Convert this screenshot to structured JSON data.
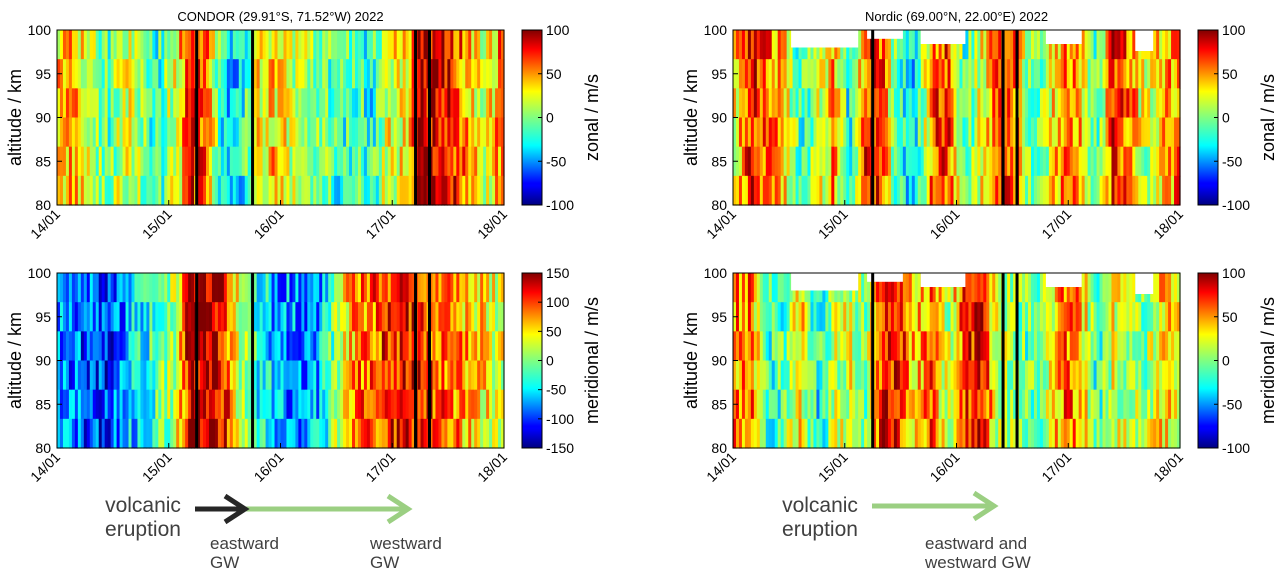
{
  "chart_data": [
    {
      "type": "heatmap",
      "title": "CONDOR  (29.91°S, 71.52°W)  2022",
      "ylabel": "altitude / km",
      "colorbar_label": "zonal / m/s",
      "x_ticks": [
        "14/01",
        "15/01",
        "16/01",
        "17/01",
        "18/01"
      ],
      "y_ticks": [
        80,
        85,
        90,
        95,
        100
      ],
      "ylim": [
        80,
        100
      ],
      "clim": [
        -100,
        100
      ],
      "colorbar_ticks": [
        100,
        50,
        0,
        -50,
        -100
      ],
      "colormap": "jet",
      "event_lines": [
        "15/01 06:00",
        "15/01 18:00",
        "17/01 05:00",
        "17/01 08:00"
      ]
    },
    {
      "type": "heatmap",
      "title": "Nordic  (69.00°N, 22.00°E)  2022",
      "ylabel": "altitude / km",
      "colorbar_label": "zonal / m/s",
      "x_ticks": [
        "14/01",
        "15/01",
        "16/01",
        "17/01",
        "18/01"
      ],
      "y_ticks": [
        80,
        85,
        90,
        95,
        100
      ],
      "ylim": [
        80,
        100
      ],
      "clim": [
        -100,
        100
      ],
      "colorbar_ticks": [
        100,
        50,
        0,
        -50,
        -100
      ],
      "colormap": "jet",
      "event_lines": [
        "15/01 06:00",
        "16/01 10:00",
        "16/01 13:00"
      ]
    },
    {
      "type": "heatmap",
      "title": "",
      "ylabel": "altitude / km",
      "colorbar_label": "meridional / m/s",
      "x_ticks": [
        "14/01",
        "15/01",
        "16/01",
        "17/01",
        "18/01"
      ],
      "y_ticks": [
        80,
        85,
        90,
        95,
        100
      ],
      "ylim": [
        80,
        100
      ],
      "clim": [
        -150,
        150
      ],
      "colorbar_ticks": [
        150,
        100,
        50,
        0,
        -50,
        -100,
        -150
      ],
      "colormap": "jet",
      "event_lines": [
        "15/01 06:00",
        "15/01 18:00",
        "17/01 05:00",
        "17/01 08:00"
      ]
    },
    {
      "type": "heatmap",
      "title": "",
      "ylabel": "altitude / km",
      "colorbar_label": "meridional / m/s",
      "x_ticks": [
        "14/01",
        "15/01",
        "16/01",
        "17/01",
        "18/01"
      ],
      "y_ticks": [
        80,
        85,
        90,
        95,
        100
      ],
      "ylim": [
        80,
        100
      ],
      "clim": [
        -100,
        100
      ],
      "colorbar_ticks": [
        100,
        50,
        0,
        -50,
        -100
      ],
      "colormap": "jet",
      "event_lines": [
        "15/01 06:00",
        "16/01 10:00",
        "16/01 13:00"
      ]
    }
  ],
  "annotations": {
    "left_eruption": [
      "volcanic",
      "eruption"
    ],
    "left_eastward": [
      "eastward",
      "GW"
    ],
    "left_westward": [
      "westward",
      "GW"
    ],
    "right_eruption": [
      "volcanic",
      "eruption"
    ],
    "right_gw": [
      "eastward and",
      "westward GW"
    ],
    "colors": {
      "dark_arrow": "#262626",
      "green_arrow": "#9bcf82",
      "text": "#404040"
    }
  }
}
